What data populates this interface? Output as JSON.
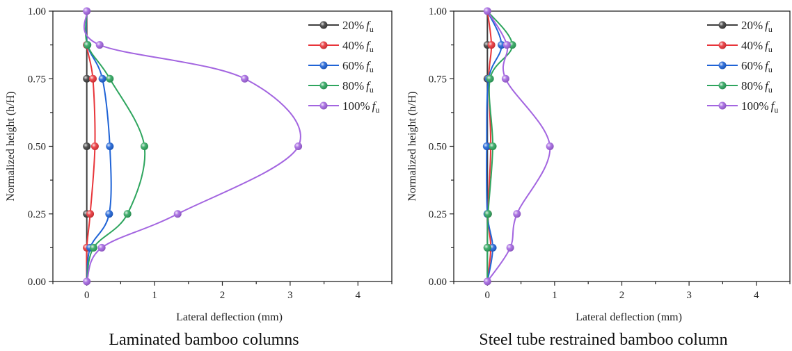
{
  "chart_data": [
    {
      "type": "line",
      "caption": "Laminated bamboo columns",
      "xlabel": "Lateral deflection (mm)",
      "ylabel": "Normalized height (h/H)",
      "xlim": [
        -0.5,
        4.5
      ],
      "ylim": [
        0,
        1
      ],
      "xticks": [
        0,
        1,
        2,
        3,
        4
      ],
      "yticks": [
        "0.00",
        "0.25",
        "0.50",
        "0.75",
        "1.00"
      ],
      "ytick_values": [
        0,
        0.25,
        0.5,
        0.75,
        1.0
      ],
      "grid": false,
      "legend_position": "top-right",
      "y": [
        0,
        0.125,
        0.25,
        0.5,
        0.75,
        0.875,
        1.0
      ],
      "series": [
        {
          "name": "20%",
          "color": "#3f3f3f",
          "x": [
            0,
            0,
            0,
            0,
            0,
            0,
            0
          ]
        },
        {
          "name": "40%",
          "color": "#e8353a",
          "x": [
            0,
            0,
            0.05,
            0.12,
            0.09,
            0,
            0
          ]
        },
        {
          "name": "60%",
          "color": "#1f63d6",
          "x": [
            0,
            0.05,
            0.33,
            0.34,
            0.23,
            0.01,
            0
          ]
        },
        {
          "name": "80%",
          "color": "#2ea55e",
          "x": [
            0,
            0.1,
            0.6,
            0.85,
            0.34,
            0.01,
            0
          ]
        },
        {
          "name": "100%",
          "color": "#a365e0",
          "x": [
            0,
            0.22,
            1.34,
            3.12,
            2.33,
            0.19,
            0
          ]
        }
      ]
    },
    {
      "type": "line",
      "caption": "Steel tube restrained bamboo column",
      "xlabel": "Lateral deflection (mm)",
      "ylabel": "Normalized height (h/H)",
      "xlim": [
        -0.5,
        4.5
      ],
      "ylim": [
        0,
        1
      ],
      "xticks": [
        0,
        1,
        2,
        3,
        4
      ],
      "yticks": [
        "0.00",
        "0.25",
        "0.50",
        "0.75",
        "1.00"
      ],
      "ytick_values": [
        0,
        0.25,
        0.5,
        0.75,
        1.0
      ],
      "grid": false,
      "legend_position": "top-right",
      "y": [
        0,
        0.125,
        0.25,
        0.5,
        0.75,
        0.875,
        1.0
      ],
      "series": [
        {
          "name": "20%",
          "color": "#3f3f3f",
          "x": [
            0,
            0,
            0,
            0,
            0,
            0,
            0
          ]
        },
        {
          "name": "40%",
          "color": "#e8353a",
          "x": [
            0,
            0.05,
            0.01,
            0.05,
            0.02,
            0.06,
            0
          ]
        },
        {
          "name": "60%",
          "color": "#1f63d6",
          "x": [
            0,
            0.08,
            0.0,
            -0.01,
            0.02,
            0.21,
            0
          ]
        },
        {
          "name": "80%",
          "color": "#2ea55e",
          "x": [
            0,
            0.0,
            0.01,
            0.08,
            0.04,
            0.37,
            0
          ]
        },
        {
          "name": "100%",
          "color": "#a365e0",
          "x": [
            0,
            0.34,
            0.44,
            0.93,
            0.27,
            0.29,
            0
          ]
        }
      ]
    }
  ],
  "legend_suffix": "f",
  "legend_subscript": "u"
}
